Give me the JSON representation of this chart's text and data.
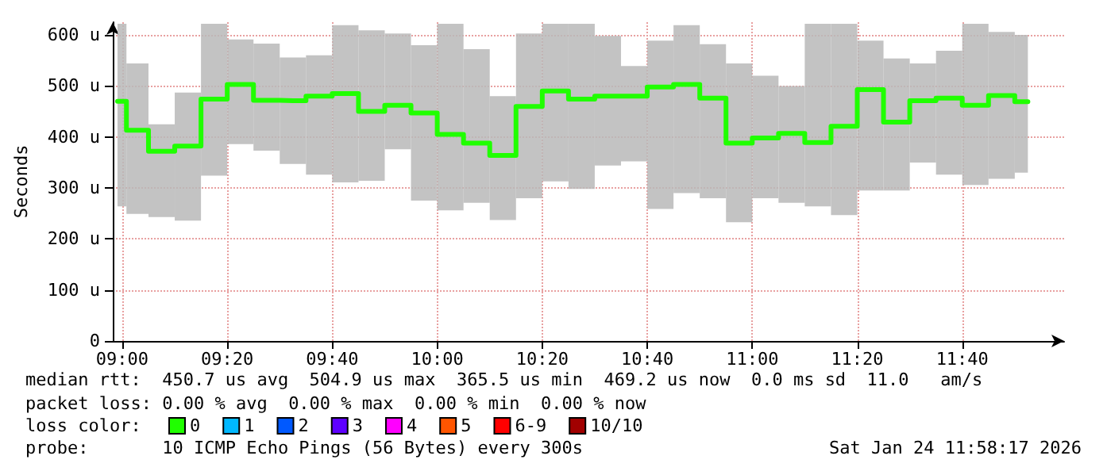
{
  "chart_data": {
    "type": "step",
    "ylabel": "Seconds",
    "legend_title": "loss color:",
    "legend": "bottom left",
    "grid": true,
    "marker": "none",
    "line_style": "solid",
    "x": [
      8.985,
      9.0417,
      9.125,
      9.2083,
      9.2917,
      9.375,
      9.4583,
      9.5417,
      9.625,
      9.7083,
      9.7917,
      9.875,
      9.9583,
      10.0417,
      10.125,
      10.2083,
      10.2917,
      10.375,
      10.4583,
      10.5417,
      10.625,
      10.7083,
      10.7917,
      10.875,
      10.9583,
      11.0417,
      11.125,
      11.2083,
      11.2917,
      11.375,
      11.4583,
      11.5417,
      11.625,
      11.7083,
      11.7917,
      11.875
    ],
    "xlim": [
      8.97,
      11.99
    ],
    "xticks": [
      {
        "value": 9.0,
        "label": "09:00"
      },
      {
        "value": 9.3333,
        "label": "09:20"
      },
      {
        "value": 9.6667,
        "label": "09:40"
      },
      {
        "value": 10.0,
        "label": "10:00"
      },
      {
        "value": 10.3333,
        "label": "10:20"
      },
      {
        "value": 10.6667,
        "label": "10:40"
      },
      {
        "value": 11.0,
        "label": "11:00"
      },
      {
        "value": 11.3333,
        "label": "11:20"
      },
      {
        "value": 11.6667,
        "label": "11:40"
      }
    ],
    "ylim": [
      0,
      625
    ],
    "yticks": [
      0,
      {
        "value": 100,
        "label": "100 u"
      },
      {
        "value": 200,
        "label": "200 u"
      },
      {
        "value": 300,
        "label": "300 u"
      },
      {
        "value": 400,
        "label": "400 u"
      },
      {
        "value": 500,
        "label": "500 u"
      },
      {
        "value": 600,
        "label": "600 u"
      }
    ],
    "series": [
      {
        "name": "0",
        "color": "#20ff00",
        "values": [
          470,
          413,
          372,
          382,
          474,
          503,
          472,
          471,
          480,
          485,
          450,
          462,
          447,
          405,
          388,
          364,
          460,
          490,
          474,
          480,
          480,
          498,
          503,
          476,
          388,
          398,
          407,
          389,
          421,
          493,
          429,
          471,
          476,
          462,
          481,
          469
        ],
        "lower": [
          264,
          249,
          243,
          236,
          324,
          386,
          373,
          347,
          326,
          311,
          314,
          376,
          275,
          256,
          271,
          237,
          280,
          313,
          298,
          344,
          352,
          259,
          290,
          280,
          233,
          280,
          271,
          264,
          247,
          295,
          295,
          350,
          326,
          306,
          318,
          330
        ],
        "upper": [
          622,
          544,
          425,
          487,
          622,
          591,
          583,
          556,
          560,
          619,
          609,
          603,
          580,
          622,
          572,
          480,
          603,
          622,
          622,
          598,
          539,
          589,
          619,
          582,
          544,
          520,
          500,
          622,
          622,
          589,
          554,
          544,
          569,
          622,
          606,
          600
        ]
      },
      {
        "name": "1",
        "color": "#00b8ff",
        "values": [
          null,
          null,
          null,
          null,
          null,
          null,
          null,
          null,
          null,
          null,
          null,
          null,
          null,
          null,
          null,
          null,
          null,
          null,
          null,
          null,
          null,
          null,
          null,
          null,
          null,
          null,
          null,
          null,
          null,
          null,
          null,
          null,
          null,
          null,
          null,
          null
        ]
      },
      {
        "name": "2",
        "color": "#0059ff",
        "values": [
          null,
          null,
          null,
          null,
          null,
          null,
          null,
          null,
          null,
          null,
          null,
          null,
          null,
          null,
          null,
          null,
          null,
          null,
          null,
          null,
          null,
          null,
          null,
          null,
          null,
          null,
          null,
          null,
          null,
          null,
          null,
          null,
          null,
          null,
          null,
          null
        ]
      },
      {
        "name": "3",
        "color": "#5e00ff",
        "values": [
          null,
          null,
          null,
          null,
          null,
          null,
          null,
          null,
          null,
          null,
          null,
          null,
          null,
          null,
          null,
          null,
          null,
          null,
          null,
          null,
          null,
          null,
          null,
          null,
          null,
          null,
          null,
          null,
          null,
          null,
          null,
          null,
          null,
          null,
          null,
          null
        ]
      },
      {
        "name": "4",
        "color": "#ff00ff",
        "values": [
          null,
          null,
          null,
          null,
          null,
          null,
          null,
          null,
          null,
          null,
          null,
          null,
          null,
          null,
          null,
          null,
          null,
          null,
          null,
          null,
          null,
          null,
          null,
          null,
          null,
          null,
          null,
          null,
          null,
          null,
          null,
          null,
          null,
          null,
          null,
          null
        ]
      },
      {
        "name": "5",
        "color": "#ff5500",
        "values": [
          null,
          null,
          null,
          null,
          null,
          null,
          null,
          null,
          null,
          null,
          null,
          null,
          null,
          null,
          null,
          null,
          null,
          null,
          null,
          null,
          null,
          null,
          null,
          null,
          null,
          null,
          null,
          null,
          null,
          null,
          null,
          null,
          null,
          null,
          null,
          null
        ]
      },
      {
        "name": "6-9",
        "color": "#ff0000",
        "values": [
          null,
          null,
          null,
          null,
          null,
          null,
          null,
          null,
          null,
          null,
          null,
          null,
          null,
          null,
          null,
          null,
          null,
          null,
          null,
          null,
          null,
          null,
          null,
          null,
          null,
          null,
          null,
          null,
          null,
          null,
          null,
          null,
          null,
          null,
          null,
          null
        ]
      },
      {
        "name": "10/10",
        "color": "#a10000",
        "values": [
          null,
          null,
          null,
          null,
          null,
          null,
          null,
          null,
          null,
          null,
          null,
          null,
          null,
          null,
          null,
          null,
          null,
          null,
          null,
          null,
          null,
          null,
          null,
          null,
          null,
          null,
          null,
          null,
          null,
          null,
          null,
          null,
          null,
          null,
          null,
          null
        ]
      }
    ],
    "annotations": [
      "median rtt:  450.7 us avg  504.9 us max  365.5 us min  469.2 us now  0.0 ms sd  11.0   am/s",
      "packet loss: 0.00 % avg  0.00 % max  0.00 % min  0.00 % now",
      "probe:       10 ICMP Echo Pings (56 Bytes) every 300s",
      "Sat Jan 24 11:58:17 2026"
    ]
  }
}
